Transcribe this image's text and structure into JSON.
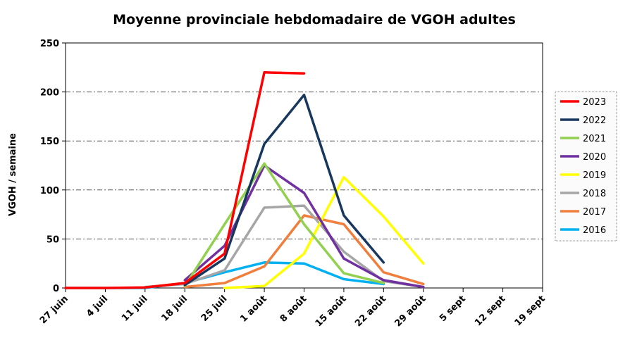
{
  "chart_data": {
    "type": "line",
    "title": "Moyenne provinciale hebdomadaire de VGOH adultes",
    "xlabel": "",
    "ylabel": "VGOH / semaine",
    "categories": [
      "27 juin",
      "4 juil",
      "11 juil",
      "18 juil",
      "25 juil",
      "1 août",
      "8 août",
      "15 août",
      "22 août",
      "29 août",
      "5 sept",
      "12 sept",
      "19 sept"
    ],
    "ylim": [
      0,
      250
    ],
    "yticks": [
      0,
      50,
      100,
      150,
      200,
      250
    ],
    "grid": "dash-dot horizontal",
    "legend_position": "right",
    "series": [
      {
        "name": "2023",
        "color": "#ff0000",
        "points": [
          [
            0,
            0
          ],
          [
            1,
            0
          ],
          [
            2,
            0.5
          ],
          [
            3,
            5
          ],
          [
            4,
            35
          ],
          [
            5,
            220
          ],
          [
            6,
            219
          ]
        ]
      },
      {
        "name": "2022",
        "color": "#17375e",
        "points": [
          [
            3,
            3
          ],
          [
            4,
            30
          ],
          [
            5,
            147
          ],
          [
            6,
            197
          ],
          [
            7,
            74
          ],
          [
            8,
            26
          ]
        ]
      },
      {
        "name": "2021",
        "color": "#92d050",
        "points": [
          [
            3,
            2
          ],
          [
            4,
            65
          ],
          [
            5,
            127
          ],
          [
            6,
            65
          ],
          [
            7,
            15
          ],
          [
            8,
            5
          ]
        ]
      },
      {
        "name": "2020",
        "color": "#7030a0",
        "points": [
          [
            3,
            8
          ],
          [
            4,
            43
          ],
          [
            5,
            125
          ],
          [
            6,
            97
          ],
          [
            7,
            30
          ],
          [
            8,
            8
          ],
          [
            9,
            1
          ]
        ]
      },
      {
        "name": "2019",
        "color": "#ffff00",
        "points": [
          [
            4,
            0
          ],
          [
            5,
            2
          ],
          [
            6,
            35
          ],
          [
            7,
            113
          ],
          [
            8,
            73
          ],
          [
            9,
            25
          ]
        ]
      },
      {
        "name": "2018",
        "color": "#a6a6a6",
        "points": [
          [
            2,
            1
          ],
          [
            3,
            4
          ],
          [
            4,
            18
          ],
          [
            5,
            82
          ],
          [
            6,
            84
          ],
          [
            7,
            37
          ],
          [
            8,
            7
          ],
          [
            9,
            1
          ]
        ]
      },
      {
        "name": "2017",
        "color": "#f07e3c",
        "points": [
          [
            3,
            1
          ],
          [
            4,
            5
          ],
          [
            5,
            22
          ],
          [
            6,
            74
          ],
          [
            7,
            65
          ],
          [
            8,
            16
          ],
          [
            9,
            4
          ]
        ]
      },
      {
        "name": "2016",
        "color": "#00b0f0",
        "points": [
          [
            0,
            0
          ],
          [
            1,
            0
          ],
          [
            2,
            0
          ],
          [
            3,
            5
          ],
          [
            4,
            16
          ],
          [
            5,
            26
          ],
          [
            6,
            25
          ],
          [
            7,
            9
          ],
          [
            8,
            4
          ]
        ]
      }
    ]
  }
}
